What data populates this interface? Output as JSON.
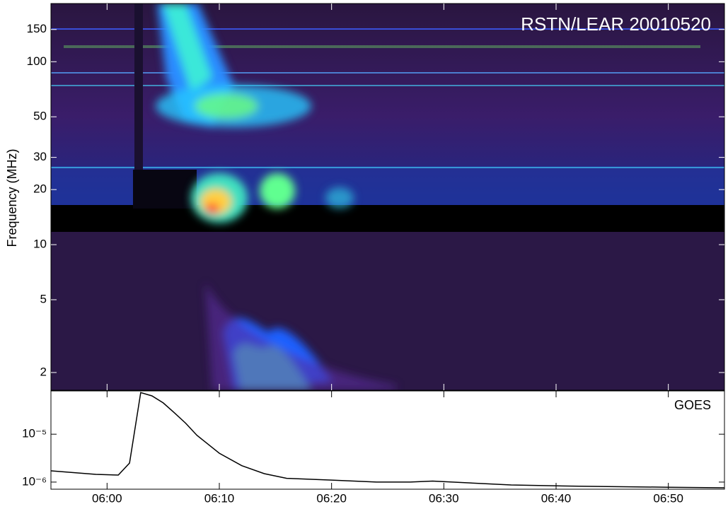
{
  "chart_data": [
    {
      "type": "spectrogram",
      "title": "RSTN/LEAR 20010520",
      "ylabel": "Frequency (MHz)",
      "yscale": "log",
      "ylim": [
        1.6,
        208
      ],
      "yticks": [
        2,
        5,
        10,
        20,
        30,
        50,
        100,
        150
      ],
      "xlim": [
        "05:55",
        "06:55"
      ]
    },
    {
      "type": "line",
      "title": "GOES",
      "yscale": "log",
      "color": "#000000",
      "xlim": [
        "05:55",
        "06:55"
      ],
      "xticks": [
        "06:00",
        "06:10",
        "06:20",
        "06:30",
        "06:40",
        "06:50"
      ],
      "ylim": [
        7.1e-07,
        8e-05
      ],
      "yticks": [
        {
          "value": 1e-06,
          "label": "10⁻⁶"
        },
        {
          "value": 1e-05,
          "label": "10⁻⁵"
        }
      ],
      "x": [
        "05:55",
        "05:59",
        "06:01",
        "06:02",
        "06:03",
        "06:04",
        "06:05",
        "06:06",
        "06:07",
        "06:08",
        "06:10",
        "06:12",
        "06:14",
        "06:16",
        "06:20",
        "06:24",
        "06:27",
        "06:29",
        "06:36",
        "06:42",
        "06:50",
        "06:55"
      ],
      "values": [
        1.72e-06,
        1.45e-06,
        1.4e-06,
        2.5e-06,
        7.4e-05,
        6.3e-05,
        4.5e-05,
        2.8e-05,
        1.7e-05,
        9.5e-06,
        4e-06,
        2.2e-06,
        1.5e-06,
        1.2e-06,
        1.1e-06,
        1e-06,
        1e-06,
        1.05e-06,
        8.7e-07,
        8.2e-07,
        7.8e-07,
        7.6e-07
      ]
    }
  ]
}
